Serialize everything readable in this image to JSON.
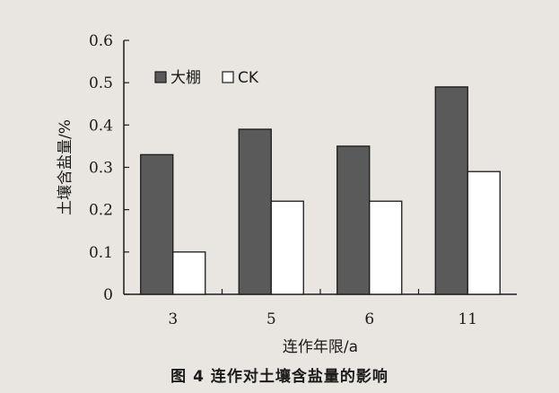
{
  "chart_data": {
    "type": "bar",
    "categories": [
      "3",
      "5",
      "6",
      "11"
    ],
    "series": [
      {
        "name": "大棚",
        "values": [
          0.33,
          0.39,
          0.35,
          0.49
        ],
        "color": "#5a5a5a"
      },
      {
        "name": "CK",
        "values": [
          0.1,
          0.22,
          0.22,
          0.29
        ],
        "color": "#ffffff"
      }
    ],
    "ylim": [
      0,
      0.6
    ],
    "yticks": [
      "0",
      "0.1",
      "0.2",
      "0.3",
      "0.4",
      "0.5",
      "0.6"
    ],
    "ylabel": "土壤含盐量/%",
    "xlabel": "连作年限/a",
    "legend": "top-left",
    "grid": false
  },
  "caption": "图 4    连作对土壤含盐量的影响"
}
